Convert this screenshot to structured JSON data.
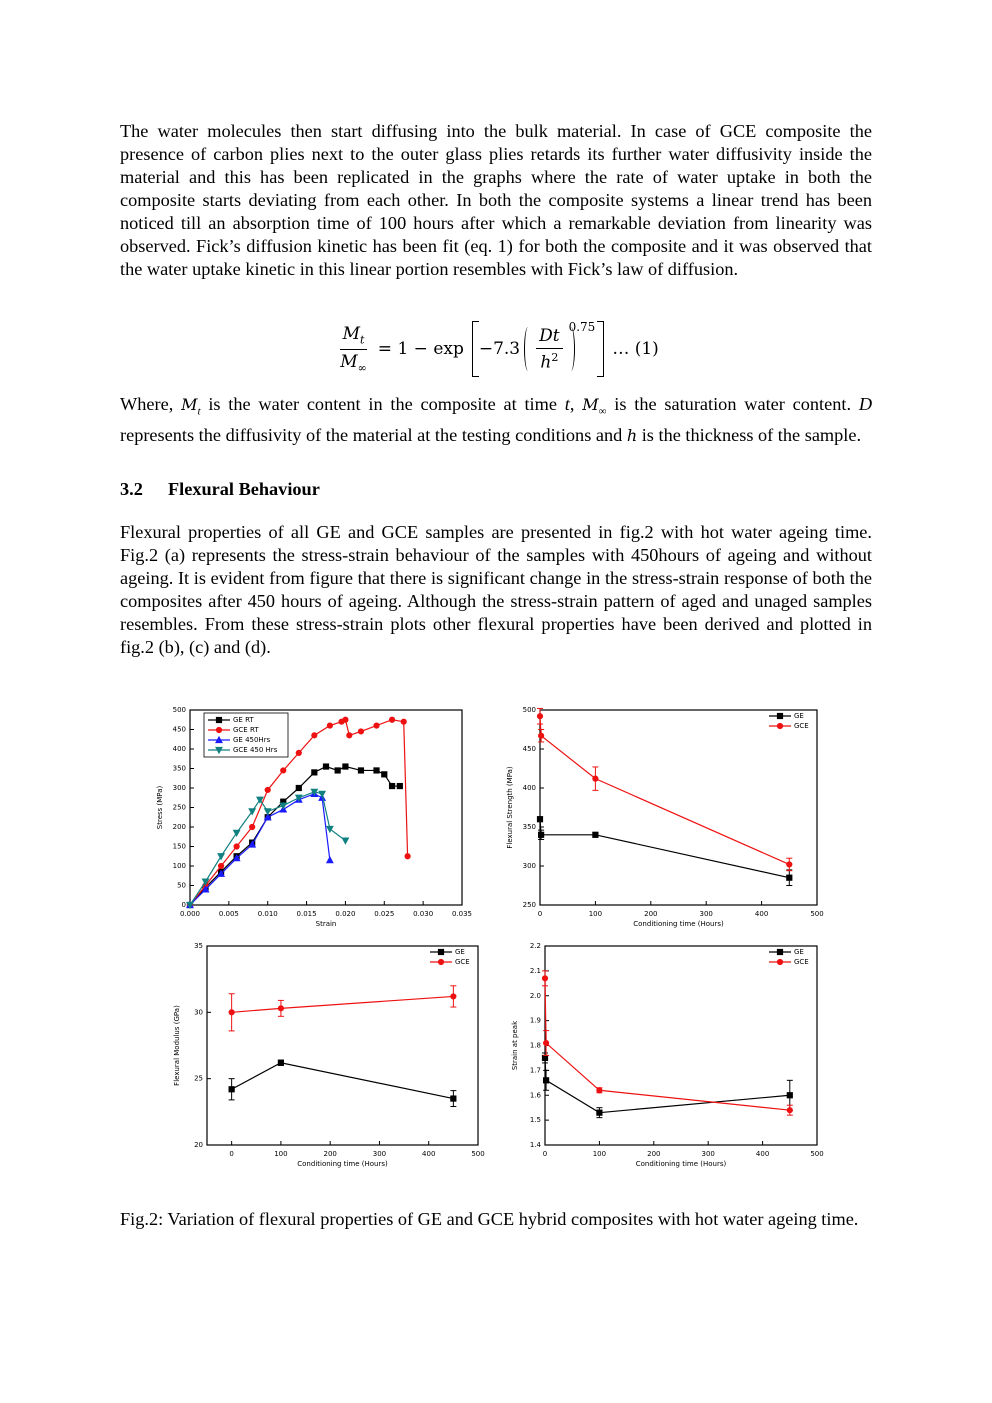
{
  "paragraphs": [
    "The water molecules then start diffusing into the bulk material. In case of GCE composite the presence of carbon plies next to the outer glass plies retards its further water diffusivity inside the material and this has been replicated in the graphs where the rate of water uptake in both the composite starts deviating from each other.  In both the composite systems a linear trend has been noticed till an absorption time of 100 hours after which a remarkable deviation from linearity was observed. Fick’s diffusion kinetic has been fit (eq. 1) for both the composite and it was observed that the water uptake kinetic in this linear portion resembles with Fick’s law of diffusion.",
    "Flexural properties of all GE and GCE samples are presented in fig.2 with hot water ageing time. Fig.2 (a) represents the stress-strain behaviour of the samples with 450hours of ageing and without ageing. It is evident from figure that there is significant change in the stress-strain response of both the composites after 450 hours of ageing. Although the stress-strain pattern of aged and unaged samples resembles. From these stress-strain plots other flexural properties have been derived and plotted in fig.2 (b), (c) and (d)."
  ],
  "equation": {
    "lhs_num": "M",
    "lhs_num_sub": "t",
    "lhs_den": "M",
    "lhs_den_sub": "∞",
    "middle": "= 1 − exp",
    "coef": "−7.3",
    "inner_num": "Dt",
    "inner_den": "h",
    "inner_den_sup": "2",
    "power": "0.75",
    "label": "… (1)"
  },
  "where_paragraph": [
    "Where, ",
    "M",
    "t",
    " is the water content in the composite at time ",
    "t",
    ", ",
    "M",
    "∞",
    " is the saturation water content. ",
    "D",
    " represents the diffusivity of the material at the testing conditions and ",
    "h",
    " is the thickness of the sample."
  ],
  "heading": {
    "number": "3.2",
    "title": "Flexural Behaviour"
  },
  "caption": "Fig.2: Variation of flexural properties of GE and GCE hybrid composites with hot water ageing time.",
  "chart_data": [
    {
      "type": "line",
      "xlabel": "Strain",
      "ylabel": "Stress (MPa)",
      "xlim": [
        0,
        0.035
      ],
      "xticks": [
        {
          "value": 0,
          "label": "0.000"
        },
        {
          "value": 0.005,
          "label": "0.005"
        },
        {
          "value": 0.01,
          "label": "0.010"
        },
        {
          "value": 0.015,
          "label": "0.015"
        },
        {
          "value": 0.02,
          "label": "0.020"
        },
        {
          "value": 0.025,
          "label": "0.025"
        },
        {
          "value": 0.03,
          "label": "0.030"
        },
        {
          "value": 0.035,
          "label": "0.035"
        }
      ],
      "ylim": [
        0,
        500
      ],
      "yticks": [
        0,
        50,
        100,
        150,
        200,
        250,
        300,
        350,
        400,
        450,
        500
      ],
      "legend": "upper left",
      "series": [
        {
          "name": "GE RT",
          "color": "#000000",
          "marker": "square",
          "x": [
            0,
            0.002,
            0.004,
            0.006,
            0.008,
            0.01,
            0.012,
            0.014,
            0.016,
            0.0175,
            0.019,
            0.02,
            0.022,
            0.024,
            0.025,
            0.026,
            0.027
          ],
          "values": [
            0,
            45,
            85,
            125,
            160,
            225,
            265,
            300,
            340,
            355,
            345,
            355,
            345,
            345,
            335,
            305,
            305
          ]
        },
        {
          "name": "GCE RT",
          "color": "#ee1111",
          "marker": "circle",
          "x": [
            0,
            0.002,
            0.004,
            0.006,
            0.008,
            0.01,
            0.012,
            0.014,
            0.016,
            0.018,
            0.0195,
            0.02,
            0.0205,
            0.022,
            0.024,
            0.026,
            0.0275,
            0.028
          ],
          "values": [
            0,
            50,
            100,
            150,
            200,
            295,
            345,
            390,
            435,
            460,
            470,
            475,
            435,
            445,
            460,
            475,
            470,
            125
          ]
        },
        {
          "name": "GE 450Hrs",
          "color": "#1a1aff",
          "marker": "triangle",
          "x": [
            0,
            0.002,
            0.004,
            0.006,
            0.008,
            0.01,
            0.012,
            0.014,
            0.016,
            0.017,
            0.018
          ],
          "values": [
            0,
            40,
            80,
            120,
            155,
            225,
            245,
            270,
            285,
            275,
            115
          ]
        },
        {
          "name": "GCE 450 Hrs",
          "color": "#118080",
          "marker": "triangle-down",
          "x": [
            0,
            0.002,
            0.004,
            0.006,
            0.008,
            0.009,
            0.01,
            0.012,
            0.014,
            0.016,
            0.017,
            0.018,
            0.02
          ],
          "values": [
            0,
            60,
            125,
            185,
            240,
            270,
            240,
            255,
            275,
            290,
            285,
            195,
            165
          ]
        }
      ]
    },
    {
      "type": "line",
      "xlabel": "Conditioning time (Hours)",
      "ylabel": "Flexural Strength (MPa)",
      "xlim": [
        0,
        500
      ],
      "xticks": [
        0,
        100,
        200,
        300,
        400,
        500
      ],
      "ylim": [
        250,
        500
      ],
      "yticks": [
        250,
        300,
        350,
        400,
        450,
        500
      ],
      "legend": "upper right",
      "series": [
        {
          "name": "GE",
          "color": "#000000",
          "marker": "square",
          "x": [
            0,
            2,
            100,
            450
          ],
          "values": [
            360,
            340,
            340,
            285
          ],
          "errors": [
            3,
            6,
            3,
            10
          ]
        },
        {
          "name": "GCE",
          "color": "#ee1111",
          "marker": "circle",
          "x": [
            0,
            2,
            100,
            450
          ],
          "values": [
            492,
            467,
            412,
            302
          ],
          "errors": [
            10,
            8,
            15,
            8
          ]
        }
      ]
    },
    {
      "type": "line",
      "xlabel": "Conditioning time (Hours)",
      "ylabel": "Flexural Modulus (GPa)",
      "xlim": [
        -50,
        500
      ],
      "xticks": [
        0,
        100,
        200,
        300,
        400,
        500
      ],
      "ylim": [
        20,
        35
      ],
      "yticks": [
        20,
        25,
        30,
        35
      ],
      "legend": "upper right",
      "series": [
        {
          "name": "GE",
          "color": "#000000",
          "marker": "square",
          "x": [
            0,
            100,
            450
          ],
          "values": [
            24.2,
            26.2,
            23.5
          ],
          "errors": [
            0.8,
            0.2,
            0.6
          ]
        },
        {
          "name": "GCE",
          "color": "#ee1111",
          "marker": "circle",
          "x": [
            0,
            100,
            450
          ],
          "values": [
            30,
            30.3,
            31.2
          ],
          "errors": [
            1.4,
            0.6,
            0.8
          ]
        }
      ]
    },
    {
      "type": "line",
      "xlabel": "Conditioning time (Hours)",
      "ylabel": "Strain at peak",
      "xlim": [
        0,
        500
      ],
      "xticks": [
        0,
        100,
        200,
        300,
        400,
        500
      ],
      "ylim": [
        1.4,
        2.2
      ],
      "yticks": [
        1.4,
        1.5,
        1.6,
        1.7,
        1.8,
        1.9,
        {
          "value": 2,
          "label": "2.0"
        },
        2.1,
        2.2
      ],
      "legend": "upper right",
      "series": [
        {
          "name": "GE",
          "color": "#000000",
          "marker": "square",
          "x": [
            0,
            2,
            100,
            450
          ],
          "values": [
            1.75,
            1.66,
            1.53,
            1.6
          ],
          "errors": [
            0.02,
            0.04,
            0.02,
            0.06
          ]
        },
        {
          "name": "GCE",
          "color": "#ee1111",
          "marker": "circle",
          "x": [
            0,
            2,
            100,
            450
          ],
          "values": [
            2.07,
            1.81,
            1.62,
            1.54
          ],
          "errors": [
            0.03,
            0.05,
            0.01,
            0.02
          ]
        }
      ]
    }
  ]
}
